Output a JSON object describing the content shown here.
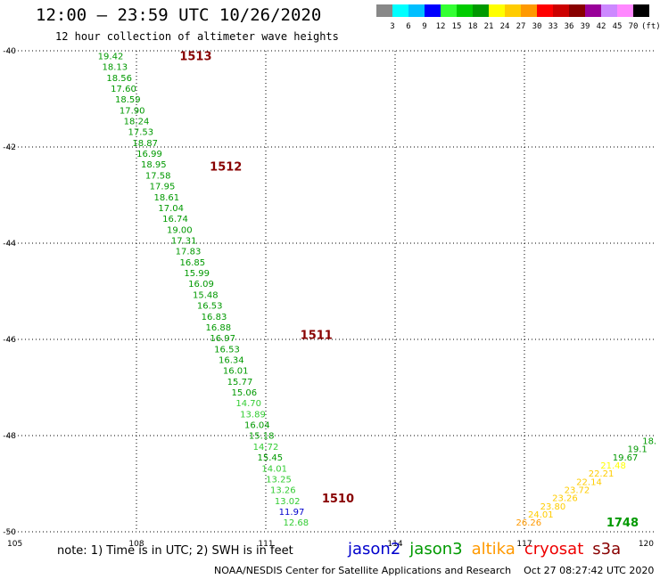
{
  "header": {
    "title": "12:00 – 23:59 UTC 10/26/2020",
    "subtitle": "12 hour collection of altimeter wave heights"
  },
  "colorbar": {
    "colors": [
      "#888888",
      "#00ffff",
      "#00bfff",
      "#0000ff",
      "#33ff33",
      "#00cc00",
      "#009900",
      "#ffff00",
      "#ffcc00",
      "#ff9900",
      "#ff0000",
      "#cc0000",
      "#880000",
      "#990099",
      "#cc88ff",
      "#ff88ff",
      "#000000"
    ],
    "labels": [
      "3",
      "6",
      "9",
      "12",
      "15",
      "18",
      "21",
      "24",
      "27",
      "30",
      "33",
      "36",
      "39",
      "42",
      "45",
      "70",
      "(ft)"
    ]
  },
  "note": "note: 1) Time is in UTC; 2) SWH is in feet",
  "legend": [
    {
      "name": "jason2",
      "color": "#0000cc"
    },
    {
      "name": "jason3",
      "color": "#009900"
    },
    {
      "name": "altika",
      "color": "#ff9900"
    },
    {
      "name": "cryosat",
      "color": "#ee0000"
    },
    {
      "name": "s3a",
      "color": "#880000"
    }
  ],
  "footer": "NOAA/NESDIS Center for Satellite Applications and Research    Oct 27 08:27:42 UTC 2020",
  "chart_data": {
    "type": "scatter",
    "xlim": [
      105,
      120
    ],
    "ylim": [
      -50,
      -40
    ],
    "x_ticks": [
      "105",
      "108",
      "111",
      "114",
      "117",
      "120"
    ],
    "y_ticks": [
      "-40",
      "-42",
      "-44",
      "-46",
      "-48",
      "-50"
    ],
    "grid": true,
    "track_a_values": [
      "19.42",
      "18.13",
      "18.56",
      "17.60",
      "18.59",
      "17.90",
      "18.24",
      "17.53",
      "18.87",
      "16.99",
      "18.95",
      "17.58",
      "17.95",
      "18.61",
      "17.04",
      "16.74",
      "19.00",
      "17.31",
      "17.83",
      "16.85",
      "15.99",
      "16.09",
      "15.48",
      "16.53",
      "16.83",
      "16.88",
      "16.97",
      "16.53",
      "16.34",
      "16.01",
      "15.77",
      "15.06",
      "14.70",
      "13.89",
      "16.04",
      "15.18",
      "14.72",
      "15.45",
      "14.01",
      "13.25",
      "13.26",
      "13.02",
      "11.97",
      "12.68"
    ],
    "track_a_colors": [
      "#009900",
      "#009900",
      "#009900",
      "#009900",
      "#009900",
      "#009900",
      "#009900",
      "#009900",
      "#009900",
      "#009900",
      "#009900",
      "#009900",
      "#009900",
      "#009900",
      "#009900",
      "#009900",
      "#009900",
      "#009900",
      "#009900",
      "#009900",
      "#009900",
      "#009900",
      "#009900",
      "#009900",
      "#009900",
      "#009900",
      "#009900",
      "#009900",
      "#009900",
      "#009900",
      "#009900",
      "#009900",
      "#33cc33",
      "#33cc33",
      "#009900",
      "#009900",
      "#33cc33",
      "#009900",
      "#33cc33",
      "#33cc33",
      "#33cc33",
      "#33cc33",
      "#0000cc",
      "#33cc33"
    ],
    "track_a_start": [
      107.4,
      -40.1
    ],
    "track_a_end": [
      111.7,
      -49.8
    ],
    "track_b_values": [
      "26.26",
      "24.01",
      "23.80",
      "23.26",
      "23.72",
      "22.14",
      "22.21",
      "21.48",
      "19.67",
      "19.1",
      "18."
    ],
    "track_b_colors": [
      "#ff9900",
      "#ffcc00",
      "#ffcc00",
      "#ffcc00",
      "#ffcc00",
      "#ffcc00",
      "#ffcc00",
      "#ffff00",
      "#009900",
      "#009900",
      "#009900"
    ],
    "track_b_start": [
      117.1,
      -49.8
    ],
    "track_b_end": [
      119.9,
      -48.1
    ],
    "time_labels": [
      {
        "text": "1513",
        "x": 109.0,
        "y": -40.1
      },
      {
        "text": "1512",
        "x": 109.7,
        "y": -42.4
      },
      {
        "text": "1511",
        "x": 111.8,
        "y": -45.9
      },
      {
        "text": "1510",
        "x": 112.3,
        "y": -49.3
      },
      {
        "text": "1748",
        "x": 118.9,
        "y": -49.8
      }
    ],
    "time_label_colors": [
      "#880000",
      "#880000",
      "#880000",
      "#880000",
      "#009900"
    ]
  }
}
